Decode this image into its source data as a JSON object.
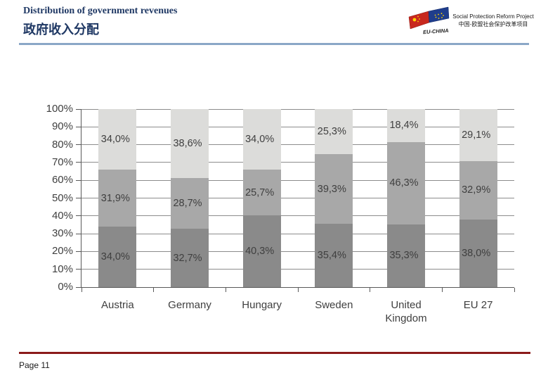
{
  "header": {
    "title_en": "Distribution of government revenues",
    "title_zh": "政府收入分配"
  },
  "logo": {
    "flag_caption": "EU-CHINA",
    "title_en": "Social Protection Reform Project",
    "title_zh": "中国-欧盟社会保护改革项目"
  },
  "footer": {
    "page_label": "Page 11"
  },
  "colors": {
    "title_navy": "#1f3864",
    "header_rule_blue": "#8ba7c7",
    "footer_rule_red": "#8b1a1a",
    "chart_text": "#3f3f3f",
    "gridline": "#8c8c8c",
    "axis": "#595959"
  },
  "chart_data": {
    "type": "bar",
    "stacked": true,
    "grid": true,
    "legend": "none",
    "categories": [
      "Austria",
      "Germany",
      "Hungary",
      "Sweden",
      "United Kingdom",
      "EU 27"
    ],
    "series": [
      {
        "name": "bottom-segment",
        "color": "#8a8a8a",
        "values": [
          34.0,
          32.7,
          40.3,
          35.4,
          35.3,
          38.0
        ],
        "labels": [
          "34,0%",
          "32,7%",
          "40,3%",
          "35,4%",
          "35,3%",
          "38,0%"
        ]
      },
      {
        "name": "middle-segment",
        "color": "#a8a8a8",
        "values": [
          31.9,
          28.7,
          25.7,
          39.3,
          46.3,
          32.9
        ],
        "labels": [
          "31,9%",
          "28,7%",
          "25,7%",
          "39,3%",
          "46,3%",
          "32,9%"
        ]
      },
      {
        "name": "top-segment",
        "color": "#dcdcda",
        "values": [
          34.0,
          38.6,
          34.0,
          25.3,
          18.4,
          29.1
        ],
        "labels": [
          "34,0%",
          "38,6%",
          "34,0%",
          "25,3%",
          "18,4%",
          "29,1%"
        ]
      }
    ],
    "ylim": [
      0,
      100
    ],
    "y_ticks": [
      "0%",
      "10%",
      "20%",
      "30%",
      "40%",
      "50%",
      "60%",
      "70%",
      "80%",
      "90%",
      "100%"
    ],
    "xlabel": "",
    "ylabel": "",
    "title": "",
    "decimal_separator": ","
  }
}
